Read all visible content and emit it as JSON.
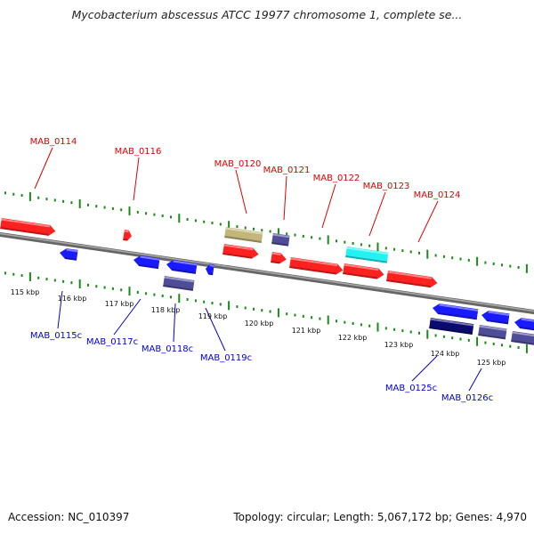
{
  "title": "Mycobacterium abscessus ATCC 19977 chromosome 1, complete se...",
  "footer": {
    "accession": "Accession: NC_010397",
    "summary": "Topology: circular; Length: 5,067,172 bp; Genes: 4,970"
  },
  "colors": {
    "forward_gene": "#ff2020",
    "reverse_gene": "#1a1aff",
    "khaki_feature": "#c2b67a",
    "slate_feature": "#4f4c98",
    "navy_feature": "#0a0a70",
    "cyan_feature": "#22f2f2",
    "backbone": "#888888",
    "tick": "#1a8a1a",
    "forward_label": "#dd0000",
    "reverse_label": "#0000cc"
  },
  "scale_labels": [
    "115 kbp",
    "116 kbp",
    "117 kbp",
    "118 kbp",
    "119 kbp",
    "120 kbp",
    "121 kbp",
    "122 kbp",
    "123 kbp",
    "124 kbp",
    "125 kbp"
  ],
  "forward_labels": [
    "MAB_0114",
    "MAB_0116",
    "MAB_0120",
    "MAB_0121",
    "MAB_0122",
    "MAB_0123",
    "MAB_0124"
  ],
  "reverse_labels": [
    "MAB_0115c",
    "MAB_0117c",
    "MAB_0118c",
    "MAB_0119c",
    "MAB_0125c",
    "MAB_0126c"
  ]
}
